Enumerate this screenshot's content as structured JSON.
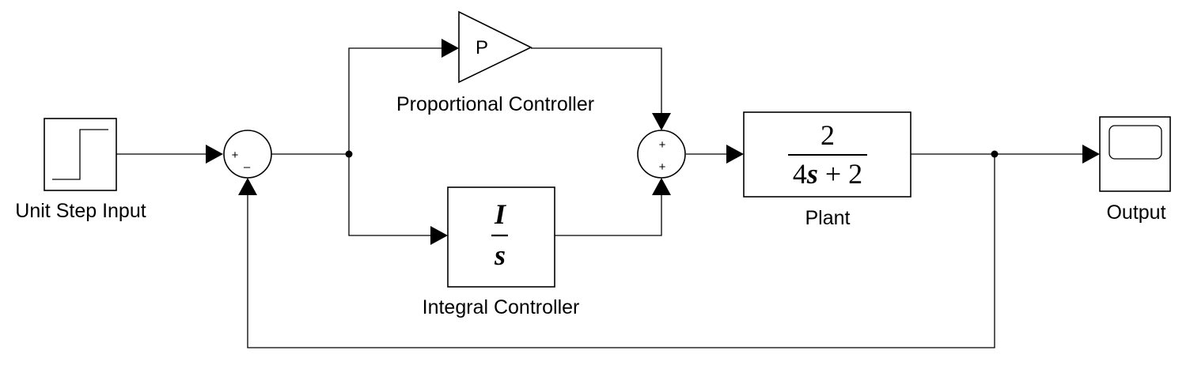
{
  "blocks": {
    "step": {
      "label": "Unit Step Input"
    },
    "sum1": {
      "sign_top": "+",
      "sign_bottom": "–"
    },
    "gain": {
      "symbol": "P",
      "label": "Proportional Controller"
    },
    "integral": {
      "numerator": "I",
      "denominator": "s",
      "label": "Integral Controller"
    },
    "sum2": {
      "sign_top": "+",
      "sign_bottom": "+"
    },
    "plant": {
      "numerator": "2",
      "denominator_coef": "4",
      "denominator_var": "s",
      "denominator_rest": " + 2",
      "label": "Plant"
    },
    "scope": {
      "label": "Output"
    }
  }
}
